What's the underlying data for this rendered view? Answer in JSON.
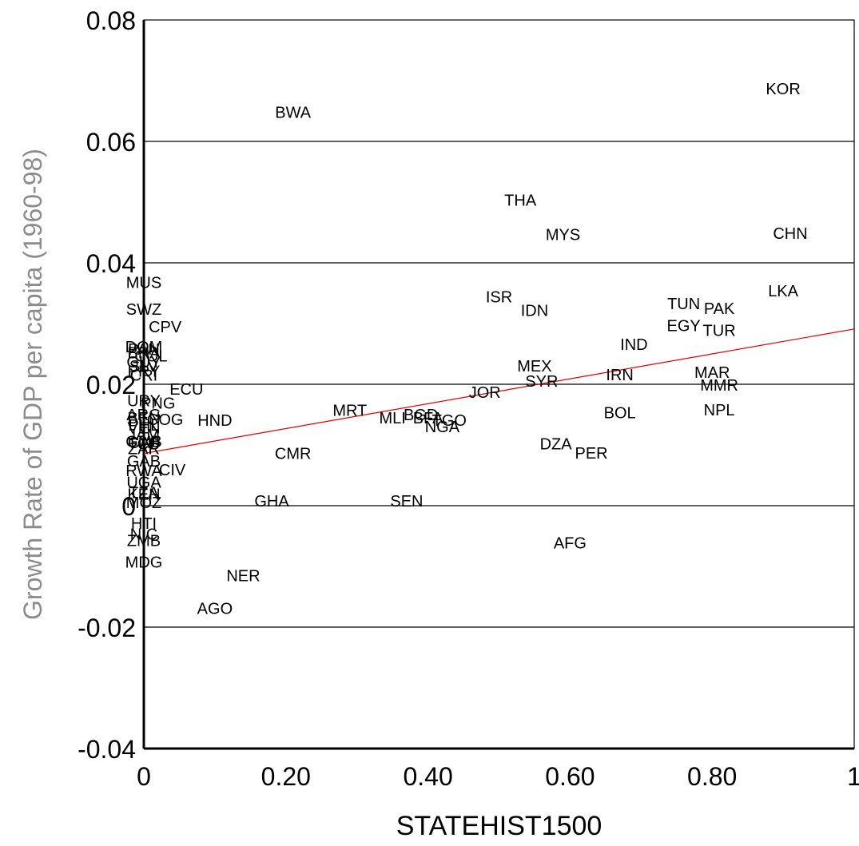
{
  "chart_data": {
    "type": "scatter",
    "xlabel": "STATEHIST1500",
    "ylabel": "Growth Rate of GDP per capita (1960-98)",
    "xlim": [
      0,
      1
    ],
    "ylim": [
      -0.04,
      0.08
    ],
    "x_ticks": [
      0,
      0.2,
      0.4,
      0.6,
      0.8,
      1
    ],
    "x_tick_labels": [
      "0",
      "0.20",
      "0.40",
      "0.60",
      "0.80",
      "1"
    ],
    "y_ticks": [
      -0.04,
      -0.02,
      0,
      0.02,
      0.04,
      0.06,
      0.08
    ],
    "y_tick_labels": [
      "-0.04",
      "-0.02",
      "0",
      "0.02",
      "0.04",
      "0.06",
      "0.08"
    ],
    "grid": "horizontal",
    "fit_line": {
      "x": [
        0,
        1
      ],
      "y": [
        0.0086,
        0.0291
      ],
      "color": "#e00000"
    },
    "points": [
      {
        "label": "KOR",
        "x": 0.9,
        "y": 0.0687
      },
      {
        "label": "BWA",
        "x": 0.21,
        "y": 0.0648
      },
      {
        "label": "THA",
        "x": 0.53,
        "y": 0.0503
      },
      {
        "label": "MYS",
        "x": 0.59,
        "y": 0.0447
      },
      {
        "label": "CHN",
        "x": 0.91,
        "y": 0.0449
      },
      {
        "label": "MUS",
        "x": 0.0,
        "y": 0.0368
      },
      {
        "label": "LKA",
        "x": 0.9,
        "y": 0.0354
      },
      {
        "label": "ISR",
        "x": 0.5,
        "y": 0.0344
      },
      {
        "label": "IDN",
        "x": 0.55,
        "y": 0.0322
      },
      {
        "label": "TUN",
        "x": 0.76,
        "y": 0.0333
      },
      {
        "label": "PAK",
        "x": 0.81,
        "y": 0.0325
      },
      {
        "label": "SWZ",
        "x": 0.0,
        "y": 0.0324
      },
      {
        "label": "EGY",
        "x": 0.76,
        "y": 0.0297
      },
      {
        "label": "TUR",
        "x": 0.81,
        "y": 0.0289
      },
      {
        "label": "CPV",
        "x": 0.03,
        "y": 0.0295
      },
      {
        "label": "IND",
        "x": 0.69,
        "y": 0.0266
      },
      {
        "label": "DOM",
        "x": 0.0,
        "y": 0.0262
      },
      {
        "label": "PAN",
        "x": 0.0,
        "y": 0.0258
      },
      {
        "label": "BRA",
        "x": 0.0,
        "y": 0.0252
      },
      {
        "label": "COL",
        "x": 0.01,
        "y": 0.0247
      },
      {
        "label": "GUY",
        "x": 0.0,
        "y": 0.0237
      },
      {
        "label": "SLV",
        "x": 0.0,
        "y": 0.023
      },
      {
        "label": "MEX",
        "x": 0.55,
        "y": 0.023
      },
      {
        "label": "PRY",
        "x": 0.0,
        "y": 0.0222
      },
      {
        "label": "IRN",
        "x": 0.67,
        "y": 0.0216
      },
      {
        "label": "MAR",
        "x": 0.8,
        "y": 0.022
      },
      {
        "label": "CRI",
        "x": 0.0,
        "y": 0.0215
      },
      {
        "label": "SYR",
        "x": 0.56,
        "y": 0.0205
      },
      {
        "label": "MMR",
        "x": 0.81,
        "y": 0.0199
      },
      {
        "label": "ECU",
        "x": 0.06,
        "y": 0.0192
      },
      {
        "label": "JOR",
        "x": 0.48,
        "y": 0.0187
      },
      {
        "label": "URY",
        "x": 0.0,
        "y": 0.0173
      },
      {
        "label": "PNG",
        "x": 0.02,
        "y": 0.0169
      },
      {
        "label": "NPL",
        "x": 0.81,
        "y": 0.0158
      },
      {
        "label": "MRT",
        "x": 0.29,
        "y": 0.0157
      },
      {
        "label": "BOL",
        "x": 0.67,
        "y": 0.0153
      },
      {
        "label": "BGD",
        "x": 0.39,
        "y": 0.015
      },
      {
        "label": "ARG",
        "x": 0.0,
        "y": 0.015
      },
      {
        "label": "BEN",
        "x": 0.0,
        "y": 0.0145
      },
      {
        "label": "MLI",
        "x": 0.35,
        "y": 0.0145
      },
      {
        "label": "BFA",
        "x": 0.4,
        "y": 0.0145
      },
      {
        "label": "HND",
        "x": 0.1,
        "y": 0.0141
      },
      {
        "label": "COG",
        "x": 0.03,
        "y": 0.0142
      },
      {
        "label": "TGO",
        "x": 0.43,
        "y": 0.0141
      },
      {
        "label": "NGA",
        "x": 0.42,
        "y": 0.013
      },
      {
        "label": "PHL",
        "x": 0.0,
        "y": 0.0133
      },
      {
        "label": "VEN",
        "x": 0.0,
        "y": 0.0128
      },
      {
        "label": "JAM",
        "x": 0.0,
        "y": 0.0117
      },
      {
        "label": "GMB",
        "x": 0.0,
        "y": 0.0106
      },
      {
        "label": "CAF",
        "x": 0.0,
        "y": 0.0104
      },
      {
        "label": "TCD",
        "x": 0.0,
        "y": 0.0102
      },
      {
        "label": "DZA",
        "x": 0.58,
        "y": 0.0102
      },
      {
        "label": "ZAR",
        "x": 0.0,
        "y": 0.0094
      },
      {
        "label": "PER",
        "x": 0.63,
        "y": 0.0087
      },
      {
        "label": "CMR",
        "x": 0.21,
        "y": 0.0086
      },
      {
        "label": "GAB",
        "x": 0.0,
        "y": 0.0074
      },
      {
        "label": "CIV",
        "x": 0.04,
        "y": 0.0059
      },
      {
        "label": "RWA",
        "x": 0.0,
        "y": 0.0058
      },
      {
        "label": "UGA",
        "x": 0.0,
        "y": 0.0039
      },
      {
        "label": "TZA",
        "x": 0.0,
        "y": 0.0022
      },
      {
        "label": "KEN",
        "x": 0.0,
        "y": 0.0019
      },
      {
        "label": "MOZ",
        "x": 0.0,
        "y": 0.0005
      },
      {
        "label": "GHA",
        "x": 0.18,
        "y": 0.0008
      },
      {
        "label": "SEN",
        "x": 0.37,
        "y": 0.0008
      },
      {
        "label": "HTI",
        "x": 0.0,
        "y": -0.0029
      },
      {
        "label": "NIC",
        "x": 0.0,
        "y": -0.0047
      },
      {
        "label": "ZMB",
        "x": 0.0,
        "y": -0.0057
      },
      {
        "label": "AFG",
        "x": 0.6,
        "y": -0.0061
      },
      {
        "label": "MDG",
        "x": 0.0,
        "y": -0.0093
      },
      {
        "label": "NER",
        "x": 0.14,
        "y": -0.0115
      },
      {
        "label": "AGO",
        "x": 0.1,
        "y": -0.0169
      }
    ]
  }
}
